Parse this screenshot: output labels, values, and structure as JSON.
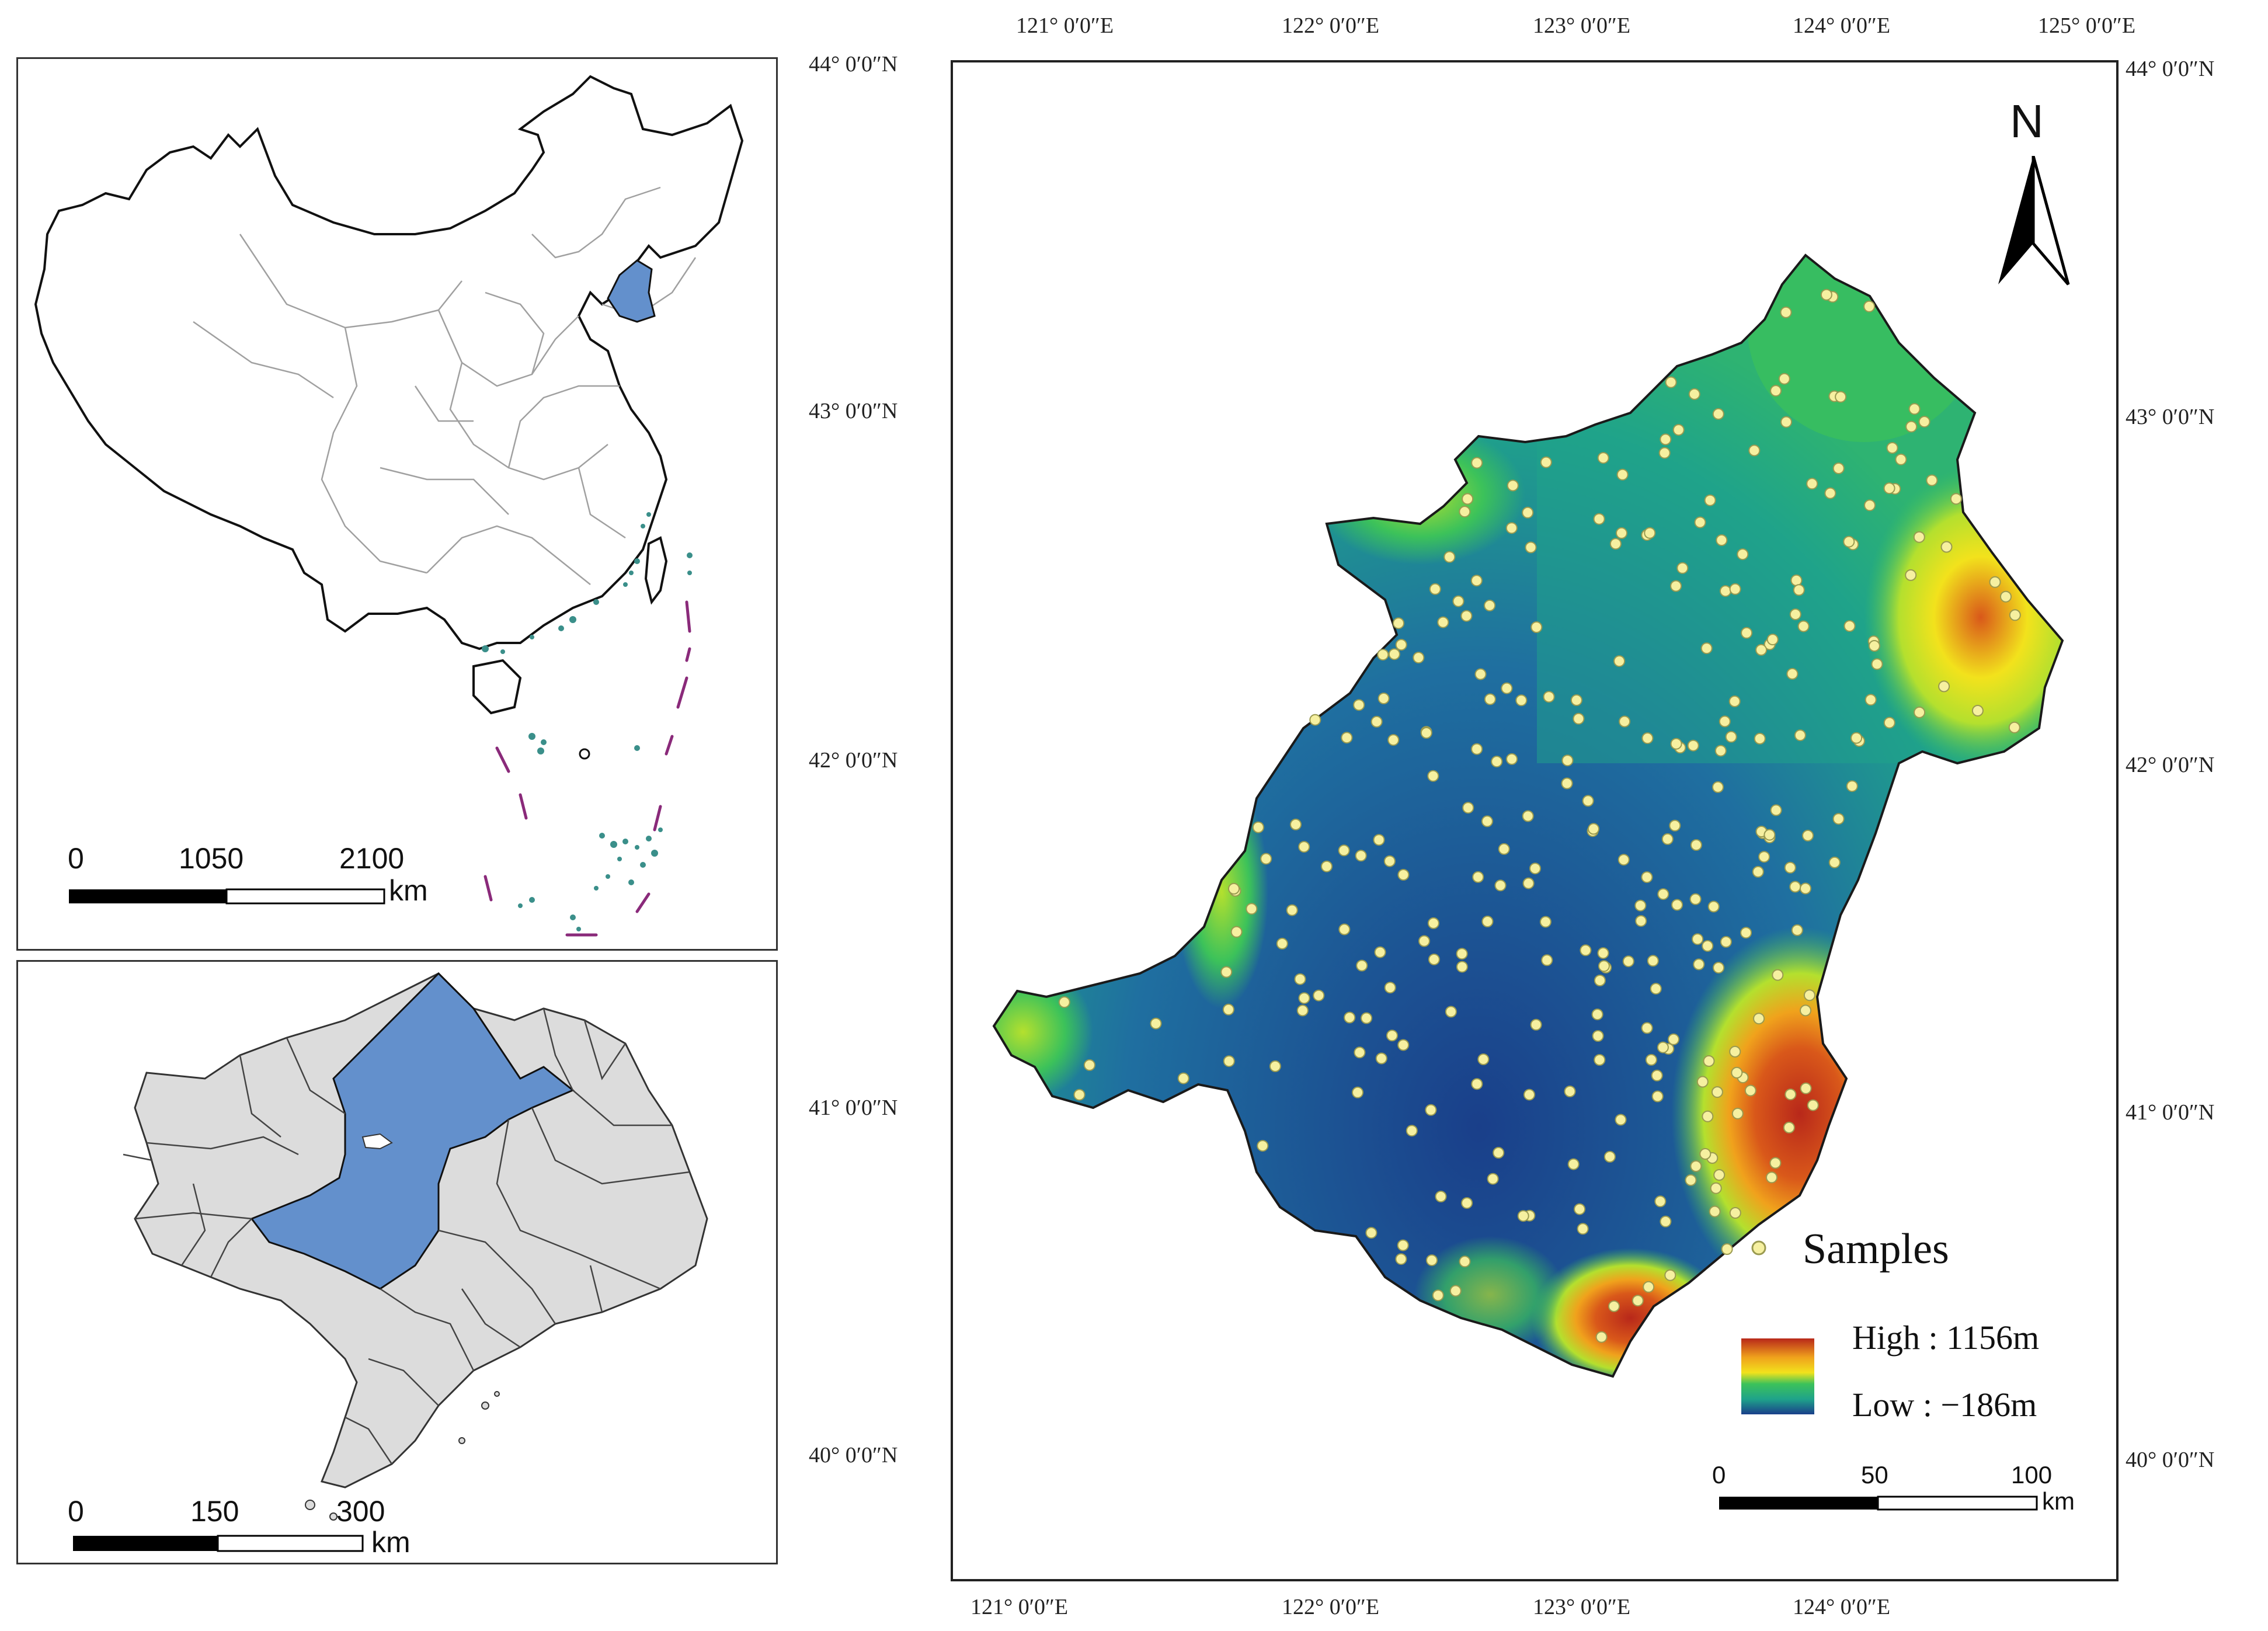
{
  "main_map": {
    "top_lon_labels": [
      "121° 0′0″E",
      "122° 0′0″E",
      "123° 0′0″E",
      "124° 0′0″E",
      "125° 0′0″E"
    ],
    "bottom_lon_labels": [
      "121° 0′0″E",
      "122° 0′0″E",
      "123° 0′0″E",
      "124° 0′0″E"
    ],
    "left_lat_labels": [
      "44° 0′0″N",
      "43° 0′0″N",
      "42° 0′0″N",
      "41° 0′0″N",
      "40° 0′0″N"
    ],
    "right_lat_labels": [
      "44° 0′0″N",
      "43° 0′0″N",
      "42° 0′0″N",
      "41° 0′0″N",
      "40° 0′0″N"
    ],
    "north_label": "N",
    "legend": {
      "samples_label": "Samples",
      "high_label": "High : 1156m",
      "low_label": "Low : −186m",
      "elevation_colors": [
        "#1a3f8a",
        "#1f6fa0",
        "#1fa38a",
        "#3cc25a",
        "#b4e02e",
        "#f2e21c",
        "#f0a21c",
        "#d9581a",
        "#b8281a"
      ],
      "sample_color": "#f6f0a0"
    },
    "scalebar": {
      "labels": [
        "0",
        "50",
        "100"
      ],
      "unit": "km"
    }
  },
  "inset_china": {
    "scalebar": {
      "labels": [
        "0",
        "1050",
        "2100"
      ],
      "unit": "km"
    },
    "highlight_color": "#6390cc"
  },
  "inset_liaoning": {
    "scalebar": {
      "labels": [
        "0",
        "150",
        "300"
      ],
      "unit": "km"
    },
    "highlight_color": "#6390cc",
    "base_color": "#dcdcdc"
  }
}
